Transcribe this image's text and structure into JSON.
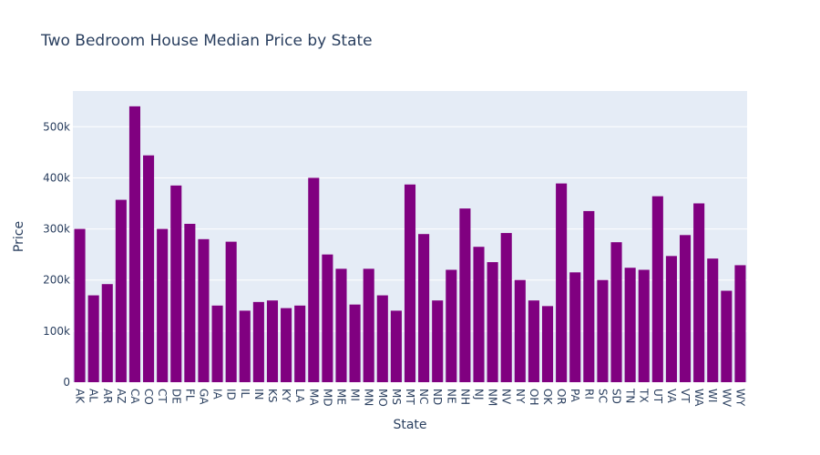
{
  "chart_data": {
    "type": "bar",
    "title": "Two Bedroom House Median Price by State",
    "xlabel": "State",
    "ylabel": "Price",
    "ylim": [
      0,
      570000
    ],
    "yticks": [
      0,
      100000,
      200000,
      300000,
      400000,
      500000
    ],
    "ytick_labels": [
      "0",
      "100k",
      "200k",
      "300k",
      "400k",
      "500k"
    ],
    "bar_color": "#800080",
    "plot_bg": "#e5ecf6",
    "categories": [
      "AK",
      "AL",
      "AR",
      "AZ",
      "CA",
      "CO",
      "CT",
      "DE",
      "FL",
      "GA",
      "IA",
      "ID",
      "IL",
      "IN",
      "KS",
      "KY",
      "LA",
      "MA",
      "MD",
      "ME",
      "MI",
      "MN",
      "MO",
      "MS",
      "MT",
      "NC",
      "ND",
      "NE",
      "NH",
      "NJ",
      "NM",
      "NV",
      "NY",
      "OH",
      "OK",
      "OR",
      "PA",
      "RI",
      "SC",
      "SD",
      "TN",
      "TX",
      "UT",
      "VA",
      "VT",
      "WA",
      "WI",
      "WV",
      "WY"
    ],
    "values": [
      300000,
      170000,
      192000,
      357000,
      540000,
      444000,
      300000,
      385000,
      310000,
      280000,
      150000,
      275000,
      140000,
      157000,
      160000,
      145000,
      150000,
      400000,
      250000,
      222000,
      152000,
      222000,
      170000,
      140000,
      387000,
      290000,
      160000,
      220000,
      340000,
      265000,
      235000,
      292000,
      200000,
      160000,
      149000,
      389000,
      215000,
      335000,
      200000,
      274000,
      224000,
      220000,
      364000,
      247000,
      288000,
      350000,
      242000,
      179000,
      229000
    ]
  }
}
